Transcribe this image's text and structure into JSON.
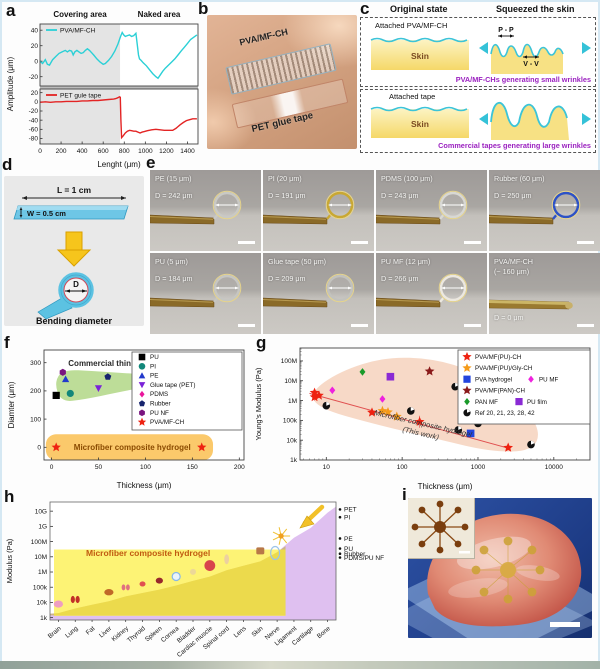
{
  "figure": {
    "panel_labels": {
      "a": "a",
      "b": "b",
      "c": "c",
      "d": "d",
      "e": "e",
      "f": "f",
      "g": "g",
      "h": "h",
      "i": "i"
    }
  },
  "panel_b": {
    "film1_label": "PVA/MF-CH",
    "film2_label": "PET glue tape"
  },
  "panel_c": {
    "header_left": "Original state",
    "header_right": "Squeezed the skin",
    "box1": {
      "attached": "Attached PVA/MF-CH",
      "skin": "Skin",
      "peak_label": "P - P",
      "valley_label": "V - V",
      "caption": "PVA/MF-CHs generating small wrinkles"
    },
    "box2": {
      "attached": "Attached tape",
      "skin": "Skin",
      "caption": "Commercial tapes generating large wrinkles"
    }
  },
  "panel_d": {
    "length_label": "L = 1 cm",
    "width_label": "W = 0.5 cm",
    "diameter_label": "D",
    "caption": "Bending diameter"
  },
  "panel_e": {
    "tiles": [
      {
        "name": "PE (15 μm)",
        "d_label": "D = 242 μm",
        "film_color": "#c9c9c5"
      },
      {
        "name": "PI (20 μm)",
        "d_label": "D = 191 μm",
        "film_color": "#c9a832"
      },
      {
        "name": "PDMS (100 μm)",
        "d_label": "D = 243 μm",
        "film_color": "#d8d8d4"
      },
      {
        "name": "Rubber (60 μm)",
        "d_label": "D = 250 μm",
        "film_color": "#2d52c6"
      },
      {
        "name": "PU (5 μm)",
        "d_label": "D = 184 μm",
        "film_color": "#c6c6c2"
      },
      {
        "name": "Glue tape (50 μm)",
        "d_label": "D = 209 μm",
        "film_color": "#c2c2be"
      },
      {
        "name": "PU MF (12 μm)",
        "d_label": "D = 266 μm",
        "film_color": "#ece8e0"
      },
      {
        "name": "PVA/MF-CH",
        "name2": "(~ 160 μm)",
        "d_label": "D = 0 μm",
        "flat": true,
        "film_color": "#d4c070"
      }
    ]
  },
  "chart_data": [
    {
      "type": "line",
      "panel": "a",
      "header_left": "Covering area",
      "header_right": "Naked area",
      "xlabel": "Lenght (μm)",
      "ylabel": "Amplitude (μm)",
      "xlim": [
        0,
        1500
      ],
      "xticks": [
        0,
        200,
        400,
        600,
        800,
        1000,
        1200,
        1400
      ],
      "covering_end": 760,
      "subplots": [
        {
          "series": "PVA/MF-CH",
          "color": "#2bd0d6",
          "ylim": [
            -32,
            48
          ],
          "yticks": [
            40,
            20,
            0,
            -20
          ],
          "points": [
            [
              0,
              0
            ],
            [
              25,
              -3
            ],
            [
              50,
              2
            ],
            [
              70,
              -4
            ],
            [
              90,
              -5
            ],
            [
              120,
              2
            ],
            [
              150,
              6
            ],
            [
              180,
              10
            ],
            [
              210,
              12
            ],
            [
              240,
              14
            ],
            [
              260,
              12
            ],
            [
              280,
              14
            ],
            [
              300,
              13
            ],
            [
              315,
              8
            ],
            [
              330,
              12
            ],
            [
              350,
              14
            ],
            [
              370,
              12
            ],
            [
              390,
              10
            ],
            [
              410,
              11
            ],
            [
              430,
              14
            ],
            [
              450,
              16
            ],
            [
              470,
              14
            ],
            [
              490,
              11
            ],
            [
              510,
              8
            ],
            [
              540,
              3
            ],
            [
              570,
              -1
            ],
            [
              600,
              -4
            ],
            [
              620,
              -3
            ],
            [
              650,
              1
            ],
            [
              680,
              6
            ],
            [
              710,
              13
            ],
            [
              740,
              22
            ],
            [
              765,
              32
            ],
            [
              780,
              37
            ],
            [
              795,
              34
            ],
            [
              810,
              32
            ],
            [
              830,
              33
            ],
            [
              850,
              34
            ],
            [
              870,
              32
            ],
            [
              890,
              33
            ],
            [
              910,
              36
            ],
            [
              925,
              20
            ],
            [
              935,
              8
            ],
            [
              945,
              3
            ],
            [
              960,
              1
            ],
            [
              980,
              -2
            ],
            [
              1010,
              -6
            ],
            [
              1040,
              -11
            ],
            [
              1070,
              -16
            ],
            [
              1100,
              -20
            ],
            [
              1120,
              -22
            ],
            [
              1140,
              -18
            ],
            [
              1165,
              -13
            ],
            [
              1190,
              -9
            ],
            [
              1220,
              -5
            ],
            [
              1250,
              -1
            ],
            [
              1280,
              3
            ],
            [
              1310,
              8
            ],
            [
              1340,
              13
            ],
            [
              1370,
              18
            ],
            [
              1400,
              23
            ],
            [
              1430,
              28
            ],
            [
              1460,
              31
            ],
            [
              1490,
              34
            ]
          ]
        },
        {
          "series": "PET gule tape",
          "color": "#e32424",
          "ylim": [
            -92,
            28
          ],
          "yticks": [
            20,
            0,
            -20,
            -40,
            -60,
            -80
          ],
          "points": [
            [
              0,
              -1
            ],
            [
              50,
              0
            ],
            [
              100,
              -1
            ],
            [
              150,
              0
            ],
            [
              200,
              0
            ],
            [
              250,
              1
            ],
            [
              300,
              1
            ],
            [
              350,
              1
            ],
            [
              400,
              2
            ],
            [
              450,
              2
            ],
            [
              500,
              3
            ],
            [
              550,
              3
            ],
            [
              600,
              4
            ],
            [
              650,
              5
            ],
            [
              700,
              6
            ],
            [
              720,
              7
            ],
            [
              740,
              9
            ],
            [
              755,
              11
            ],
            [
              762,
              10
            ],
            [
              768,
              -40
            ],
            [
              775,
              -78
            ],
            [
              790,
              -74
            ],
            [
              810,
              -68
            ],
            [
              830,
              -64
            ],
            [
              850,
              -62
            ],
            [
              870,
              -63
            ],
            [
              890,
              -64
            ],
            [
              910,
              -64
            ],
            [
              930,
              -66
            ],
            [
              950,
              -68
            ],
            [
              970,
              -66
            ],
            [
              990,
              -65
            ],
            [
              1020,
              -63
            ],
            [
              1060,
              -61
            ],
            [
              1100,
              -60
            ],
            [
              1140,
              -61
            ],
            [
              1180,
              -62
            ],
            [
              1220,
              -62
            ],
            [
              1260,
              -62
            ],
            [
              1290,
              -58
            ],
            [
              1310,
              -54
            ],
            [
              1330,
              -50
            ],
            [
              1360,
              -45
            ],
            [
              1390,
              -41
            ],
            [
              1420,
              -39
            ],
            [
              1450,
              -37
            ],
            [
              1490,
              -37
            ]
          ]
        }
      ]
    },
    {
      "type": "scatter",
      "panel": "f",
      "xlabel": "Thickness (μm)",
      "ylabel": "Diamter (μm)",
      "xlim": [
        -8,
        205
      ],
      "xticks": [
        0,
        50,
        100,
        150,
        200
      ],
      "ylim": [
        -45,
        345
      ],
      "yticks": [
        0,
        100,
        200,
        300
      ],
      "annotations": [
        {
          "text": "Commercial thin film",
          "color": "#2a2a2a"
        },
        {
          "text": "Microfiber composite hydrogel",
          "color": "#8a4a00"
        }
      ],
      "series": [
        {
          "name": "PU",
          "marker": "square",
          "color": "#000000",
          "points": [
            [
              5,
              184
            ]
          ]
        },
        {
          "name": "PI",
          "marker": "circle",
          "color": "#12877a",
          "points": [
            [
              20,
              191
            ]
          ]
        },
        {
          "name": "PE",
          "marker": "triangle",
          "color": "#2239cc",
          "points": [
            [
              15,
              242
            ]
          ]
        },
        {
          "name": "Glue tape (PET)",
          "marker": "triangle-down",
          "color": "#7a22d8",
          "points": [
            [
              50,
              209
            ]
          ]
        },
        {
          "name": "PDMS",
          "marker": "diamond",
          "color": "#ea169c",
          "points": [
            [
              100,
              243
            ]
          ]
        },
        {
          "name": "Rubber",
          "marker": "pentagon",
          "color": "#17246e",
          "points": [
            [
              60,
              250
            ]
          ]
        },
        {
          "name": "PU NF",
          "marker": "hexagon",
          "color": "#7a1580",
          "points": [
            [
              12,
              266
            ]
          ]
        },
        {
          "name": "PVA/MF-CH",
          "marker": "star",
          "color": "#ee2211",
          "points": [
            [
              5,
              0
            ],
            [
              160,
              0
            ]
          ]
        }
      ]
    },
    {
      "type": "scatter-log",
      "panel": "g",
      "xlabel": "Thickness (μm)",
      "ylabel": "Young's Modulus (Pa)",
      "xlim": [
        4.5,
        30000
      ],
      "xticks": [
        10,
        100,
        1000,
        10000
      ],
      "ylim": [
        1000,
        450000000
      ],
      "yticks": [
        1000,
        10000,
        100000,
        1000000,
        10000000,
        100000000
      ],
      "ytick_labels": [
        "1k",
        "10k",
        "100k",
        "1M",
        "10M",
        "100M"
      ],
      "annotation": {
        "line1": "Microfiber composite hydrogel",
        "line2": "(This work)"
      },
      "series": [
        {
          "name": "PVA/MF(PU)-CH",
          "marker": "star",
          "color": "#ee2211",
          "points": [
            [
              7,
              2500000
            ],
            [
              7,
              1500000
            ],
            [
              8,
              1800000
            ],
            [
              40,
              250000
            ],
            [
              170,
              85000
            ],
            [
              2500,
              4200
            ]
          ]
        },
        {
          "name": "PVA/MF(PU)/Gly-CH",
          "marker": "star",
          "color": "#f59a1a",
          "points": [
            [
              55,
              300000
            ],
            [
              65,
              260000
            ],
            [
              85,
              155000
            ]
          ]
        },
        {
          "name": "PVA hydrogel",
          "marker": "square",
          "color": "#2244dd",
          "points": [
            [
              800,
              22000
            ]
          ]
        },
        {
          "name": "PU MF",
          "marker": "diamond",
          "color": "#ee22dd",
          "points": [
            [
              12,
              3300000
            ],
            [
              55,
              1200000
            ]
          ]
        },
        {
          "name": "PVA/MF(PAN)-CH",
          "marker": "star",
          "color": "#8a1a1a",
          "points": [
            [
              230,
              30000000
            ]
          ]
        },
        {
          "name": "PAN MF",
          "marker": "diamond",
          "color": "#1a9a2a",
          "points": [
            [
              30,
              28000000
            ]
          ]
        },
        {
          "name": "PU film",
          "marker": "square",
          "color": "#8a2ad4",
          "points": [
            [
              70,
              16000000
            ]
          ]
        },
        {
          "name": "Ref 20, 21, 23, 28, 42",
          "marker": "circle-ref",
          "color": "#111111",
          "points": [
            [
              10,
              550000
            ],
            [
              130,
              300000
            ],
            [
              500,
              5000000
            ],
            [
              550,
              33000
            ],
            [
              1000,
              70000
            ],
            [
              5000,
              6000
            ]
          ]
        }
      ]
    },
    {
      "type": "area-log",
      "panel": "h",
      "ylabel": "Modulus (Pa)",
      "yticks": [
        1000,
        10000,
        100000,
        1000000,
        10000000,
        100000000,
        1000000000,
        10000000000
      ],
      "ytick_labels": [
        "1k",
        "10k",
        "100k",
        "1M",
        "10M",
        "100M",
        "1G",
        "10G"
      ],
      "categories": [
        "Brain",
        "Lung",
        "Fat",
        "Liver",
        "Kidney",
        "Thyroid",
        "Spleen",
        "Cornea",
        "Bladder",
        "Cardiac muscle",
        "Spinal cord",
        "Lens",
        "Skin",
        "Nerve",
        "Ligament",
        "Cartilage",
        "Bone"
      ],
      "values": [
        2000,
        4000,
        7000,
        12000,
        25000,
        42000,
        70000,
        130000,
        260000,
        500000,
        1300000,
        2600000,
        5000000,
        20000000,
        180000000,
        800000000,
        8000000000
      ],
      "band": {
        "label": "Microfiber composite hydrogel",
        "ymin": 1300,
        "ymax": 30000000,
        "end_category": "Nerve",
        "label_color": "#c05a10"
      },
      "right_labels": [
        {
          "text": "PET",
          "value": 13000000000
        },
        {
          "text": "PI",
          "value": 4000000000
        },
        {
          "text": "PE",
          "value": 160000000
        },
        {
          "text": "PU",
          "value": 35000000
        },
        {
          "text": "Rubber",
          "value": 16000000
        },
        {
          "text": "PDMS/PU NF",
          "value": 9000000
        }
      ]
    }
  ]
}
